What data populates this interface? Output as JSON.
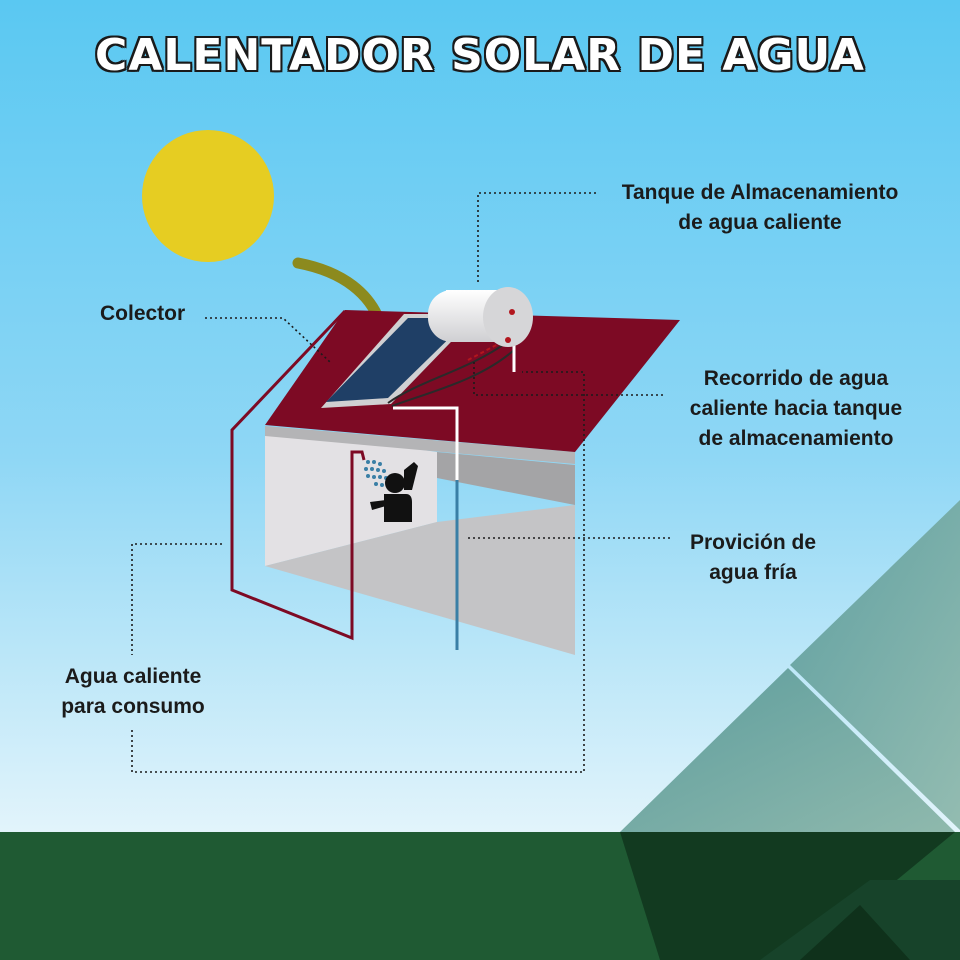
{
  "title": "CALENTADOR SOLAR DE AGUA",
  "labels": {
    "colector": "Colector",
    "tanque": [
      "Tanque de Almacenamiento",
      "de agua caliente"
    ],
    "recorrido": [
      "Recorrido de agua",
      "caliente hacia tanque",
      "de almacenamiento"
    ],
    "provision": [
      "Provición de",
      "agua fría"
    ],
    "consumo": [
      "Agua caliente",
      "para consumo"
    ]
  },
  "colors": {
    "sky_top": "#5ac8f2",
    "sky_bottom": "#dff3fb",
    "sun": "#e6cd22",
    "roof": "#7d0a24",
    "wall": "#d9d9db",
    "collector": "#1f3f66",
    "grass": "#1f5a33",
    "mountain": "#6aa7a3",
    "hot_pipe": "#7d0a24",
    "cold_pipe": "#3a7fa6"
  },
  "icons": [
    "sun-icon",
    "arrow-icon",
    "shower-icon",
    "person-icon"
  ]
}
